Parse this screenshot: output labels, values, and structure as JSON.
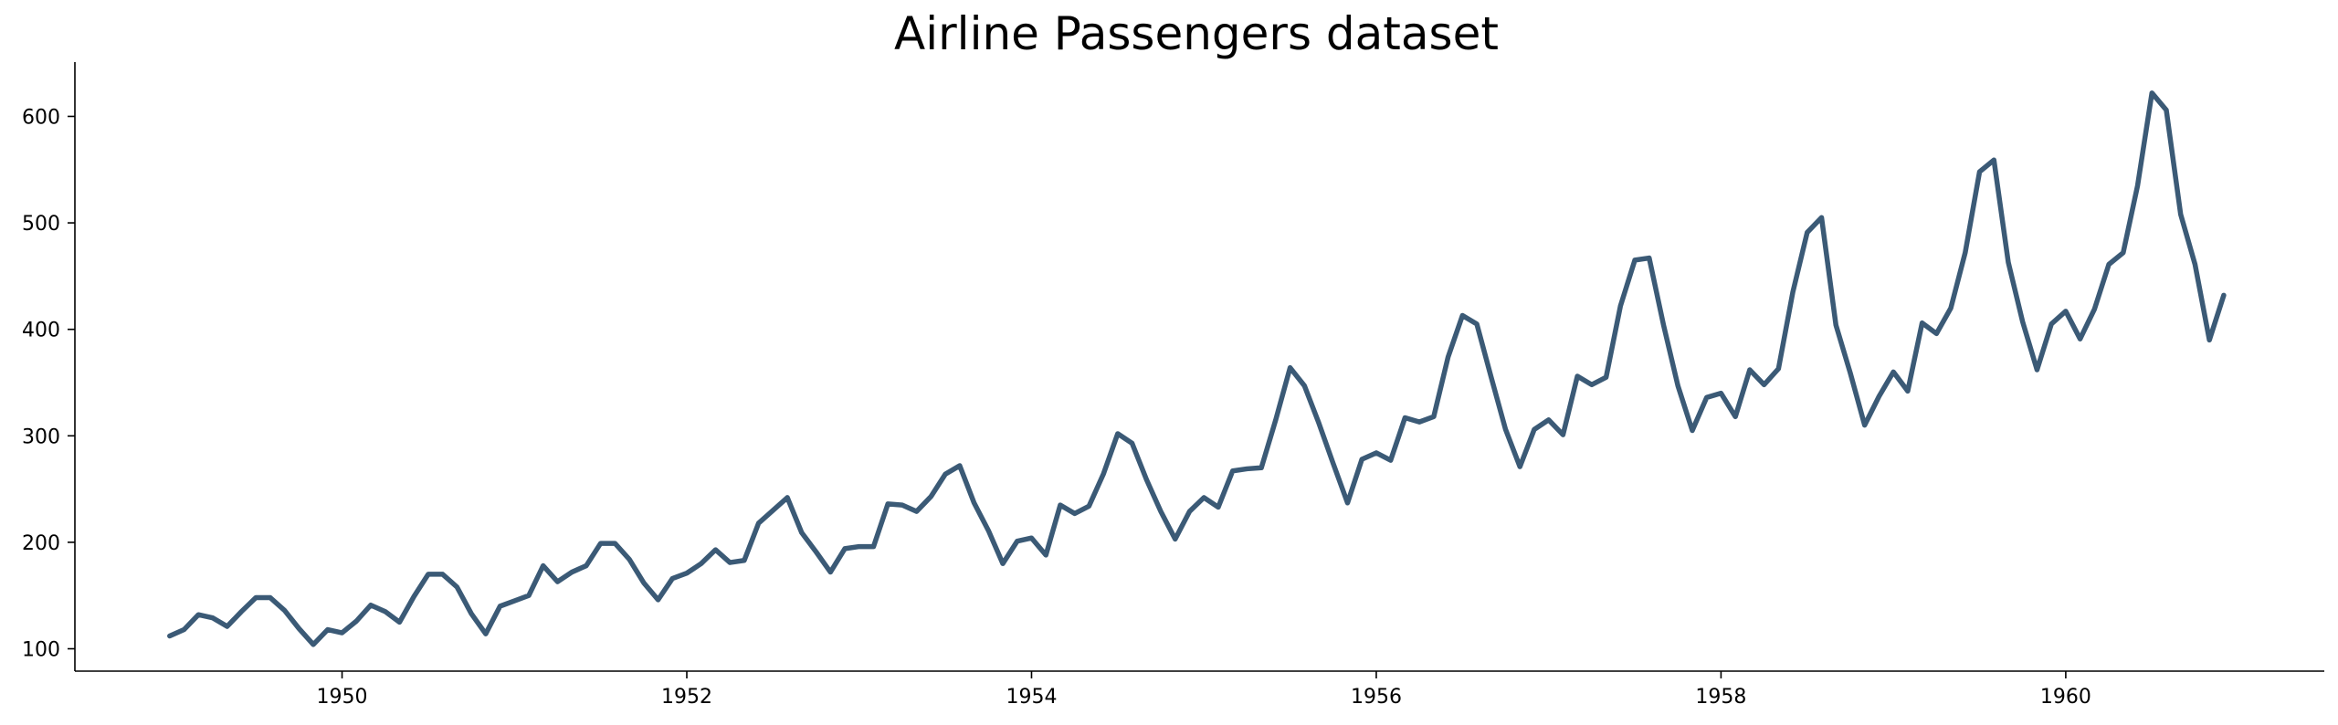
{
  "chart_data": {
    "type": "line",
    "title": "Airline Passengers dataset",
    "xlabel": "",
    "ylabel": "",
    "x_start_year": 1949,
    "x_start_month": 1,
    "xlim": [
      1948.45,
      1961.5
    ],
    "ylim": [
      79,
      651
    ],
    "xticks": [
      1950,
      1952,
      1954,
      1956,
      1958,
      1960
    ],
    "xtick_labels": [
      "1950",
      "1952",
      "1954",
      "1956",
      "1958",
      "1960"
    ],
    "yticks": [
      100,
      200,
      300,
      400,
      500,
      600
    ],
    "ytick_labels": [
      "100",
      "200",
      "300",
      "400",
      "500",
      "600"
    ],
    "grid": false,
    "line_color": "#3b5a76",
    "series": [
      {
        "values": [
          112,
          118,
          132,
          129,
          121,
          135,
          148,
          148,
          136,
          119,
          104,
          118,
          115,
          126,
          141,
          135,
          125,
          149,
          170,
          170,
          158,
          133,
          114,
          140,
          145,
          150,
          178,
          163,
          172,
          178,
          199,
          199,
          184,
          162,
          146,
          166,
          171,
          180,
          193,
          181,
          183,
          218,
          230,
          242,
          209,
          191,
          172,
          194,
          196,
          196,
          236,
          235,
          229,
          243,
          264,
          272,
          237,
          211,
          180,
          201,
          204,
          188,
          235,
          227,
          234,
          264,
          302,
          293,
          259,
          229,
          203,
          229,
          242,
          233,
          267,
          269,
          270,
          315,
          364,
          347,
          312,
          274,
          237,
          278,
          284,
          277,
          317,
          313,
          318,
          374,
          413,
          405,
          355,
          306,
          271,
          306,
          315,
          301,
          356,
          348,
          355,
          422,
          465,
          467,
          404,
          347,
          305,
          336,
          340,
          318,
          362,
          348,
          363,
          435,
          491,
          505,
          404,
          359,
          310,
          337,
          360,
          342,
          406,
          396,
          420,
          472,
          548,
          559,
          463,
          407,
          362,
          405,
          417,
          391,
          419,
          461,
          472,
          535,
          622,
          606,
          508,
          461,
          390,
          432
        ]
      }
    ]
  }
}
